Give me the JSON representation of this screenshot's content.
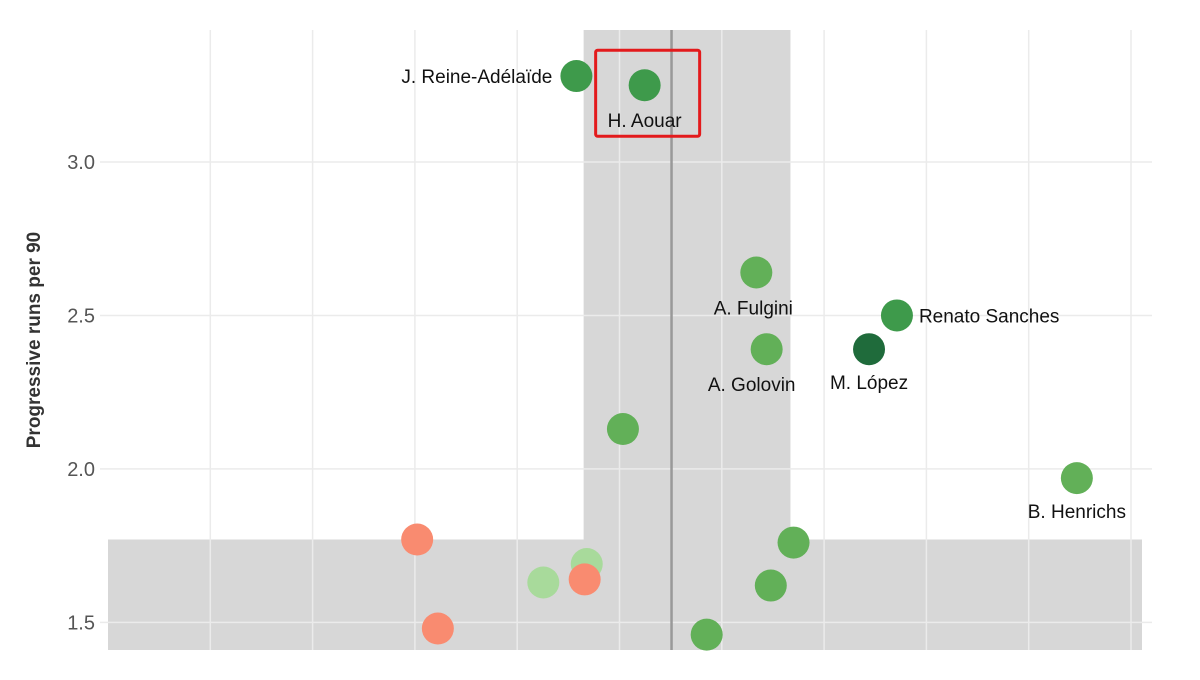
{
  "chart_data": {
    "type": "scatter",
    "title": "",
    "ylabel": "Progressive runs per 90",
    "xlabel": "",
    "ylim": [
      1.41,
      3.43
    ],
    "yticks": [
      1.5,
      2.0,
      2.5,
      3.0
    ],
    "ytick_labels": [
      "1.5",
      "2.0",
      "2.5",
      "3.0"
    ],
    "xlim": [
      0,
      1
    ],
    "grid": true,
    "shaded_regions": {
      "vertical_band_x": [
        0.46,
        0.66
      ],
      "horizontal_band_y_max": 1.77,
      "reference_line_x": 0.545
    },
    "highlight": {
      "label": "H. Aouar"
    },
    "colors": {
      "red": "#f98b70",
      "light_green": "#a8da9b",
      "green": "#62b058",
      "mid_green": "#3e9a4b",
      "dark_green": "#1f6b3b",
      "band": "#d7d7d7",
      "highlight_box": "#e31a1c"
    },
    "points": [
      {
        "x": 0.453,
        "y": 3.28,
        "label": "J. Reine-Adélaïde",
        "color": "mid_green",
        "label_pos": "left"
      },
      {
        "x": 0.519,
        "y": 3.25,
        "label": "H. Aouar",
        "color": "mid_green",
        "label_pos": "below"
      },
      {
        "x": 0.627,
        "y": 2.64,
        "label": "A. Fulgini",
        "color": "green",
        "label_pos": "below-left"
      },
      {
        "x": 0.763,
        "y": 2.5,
        "label": "Renato Sanches",
        "color": "mid_green",
        "label_pos": "right"
      },
      {
        "x": 0.637,
        "y": 2.39,
        "label": "A. Golovin",
        "color": "green",
        "label_pos": "below-left"
      },
      {
        "x": 0.736,
        "y": 2.39,
        "label": "M. López",
        "color": "dark_green",
        "label_pos": "below"
      },
      {
        "x": 0.498,
        "y": 2.13,
        "label": "",
        "color": "green"
      },
      {
        "x": 0.937,
        "y": 1.97,
        "label": "B. Henrichs",
        "color": "green",
        "label_pos": "below"
      },
      {
        "x": 0.299,
        "y": 1.77,
        "label": "",
        "color": "red"
      },
      {
        "x": 0.663,
        "y": 1.76,
        "label": "",
        "color": "green"
      },
      {
        "x": 0.463,
        "y": 1.69,
        "label": "",
        "color": "light_green"
      },
      {
        "x": 0.421,
        "y": 1.63,
        "label": "",
        "color": "light_green"
      },
      {
        "x": 0.461,
        "y": 1.64,
        "label": "",
        "color": "red"
      },
      {
        "x": 0.641,
        "y": 1.62,
        "label": "",
        "color": "green"
      },
      {
        "x": 0.319,
        "y": 1.48,
        "label": "",
        "color": "red"
      },
      {
        "x": 0.579,
        "y": 1.46,
        "label": "",
        "color": "green"
      }
    ]
  }
}
